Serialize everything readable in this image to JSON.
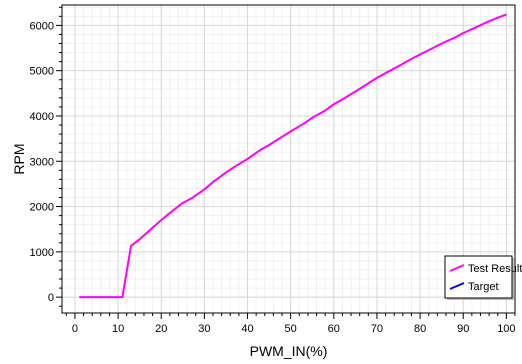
{
  "chart_data": {
    "type": "line",
    "title": "",
    "xlabel": "PWM_IN(%)",
    "ylabel": "RPM",
    "xlim": [
      -3,
      102
    ],
    "ylim": [
      -350,
      6450
    ],
    "x_ticks": [
      0,
      10,
      20,
      30,
      40,
      50,
      60,
      70,
      80,
      90,
      100
    ],
    "y_ticks": [
      0,
      1000,
      2000,
      3000,
      4000,
      5000,
      6000
    ],
    "grid": true,
    "legend_position": "bottom-right",
    "series": [
      {
        "name": "Test Result",
        "color": "#ff00ff",
        "x": [
          1,
          5,
          11,
          13,
          15,
          17,
          20,
          22,
          25,
          27,
          30,
          32,
          35,
          37,
          40,
          43,
          45,
          48,
          50,
          53,
          55,
          58,
          60,
          63,
          65,
          68,
          70,
          73,
          75,
          78,
          80,
          83,
          85,
          88,
          90,
          93,
          95,
          98,
          100
        ],
        "y": [
          0,
          0,
          0,
          1130,
          1280,
          1450,
          1700,
          1860,
          2080,
          2180,
          2380,
          2540,
          2750,
          2880,
          3050,
          3250,
          3360,
          3540,
          3660,
          3830,
          3960,
          4120,
          4260,
          4420,
          4540,
          4720,
          4840,
          5000,
          5100,
          5260,
          5360,
          5500,
          5600,
          5730,
          5830,
          5960,
          6050,
          6170,
          6240
        ]
      },
      {
        "name": "Target",
        "color": "#0000ff",
        "x": [],
        "y": []
      }
    ]
  }
}
